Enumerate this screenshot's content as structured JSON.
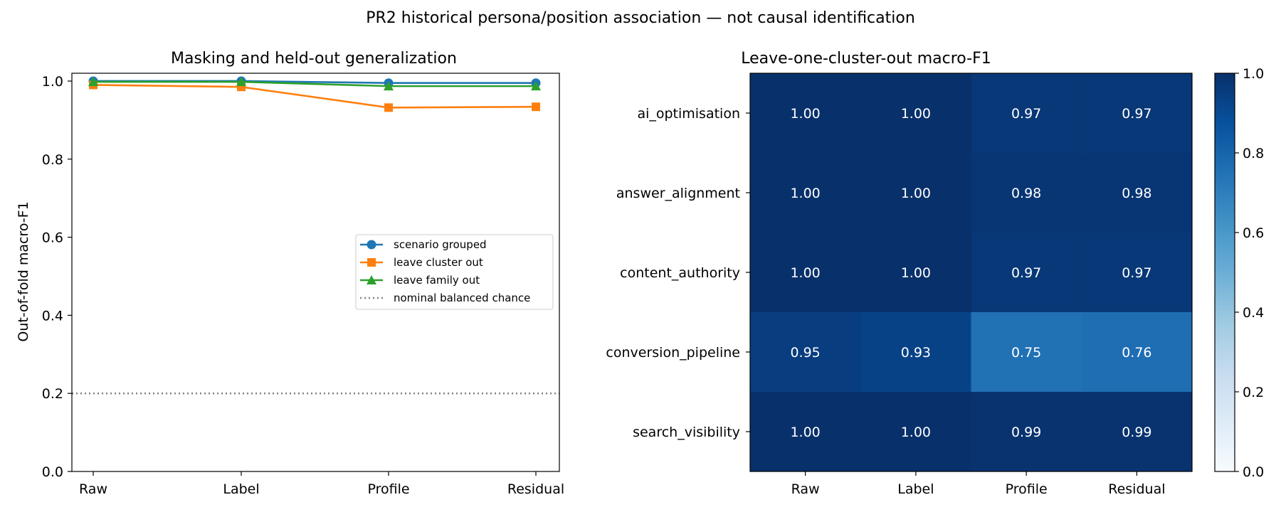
{
  "figure": {
    "suptitle": "PR2 historical persona/position association — not causal identification"
  },
  "chart_data": [
    {
      "type": "line",
      "title": "Masking and held-out generalization",
      "xlabel": "",
      "ylabel": "Out-of-fold macro-F1",
      "categories": [
        "Raw",
        "Label",
        "Profile",
        "Residual"
      ],
      "ylim": [
        0,
        1.02
      ],
      "yticks": [
        0.0,
        0.2,
        0.4,
        0.6,
        0.8,
        1.0
      ],
      "ytick_labels": [
        "0.0",
        "0.2",
        "0.4",
        "0.6",
        "0.8",
        "1.0"
      ],
      "grid": false,
      "legend_position": "center-right",
      "series": [
        {
          "name": "scenario grouped",
          "values": [
            1.0,
            1.0,
            0.995,
            0.995
          ],
          "color": "#1f77b4",
          "marker": "circle"
        },
        {
          "name": "leave cluster out",
          "values": [
            0.99,
            0.985,
            0.932,
            0.934
          ],
          "color": "#ff7f0e",
          "marker": "square"
        },
        {
          "name": "leave family out",
          "values": [
            0.998,
            0.998,
            0.987,
            0.987
          ],
          "color": "#2ca02c",
          "marker": "triangle"
        }
      ],
      "reference_lines": [
        {
          "name": "nominal balanced chance",
          "y": 0.2,
          "color": "#808080",
          "style": "dotted"
        }
      ]
    },
    {
      "type": "heatmap",
      "title": "Leave-one-cluster-out macro-F1",
      "x_categories": [
        "Raw",
        "Label",
        "Profile",
        "Residual"
      ],
      "y_categories": [
        "ai_optimisation",
        "answer_alignment",
        "content_authority",
        "conversion_pipeline",
        "search_visibility"
      ],
      "values": [
        [
          1.0,
          1.0,
          0.97,
          0.97
        ],
        [
          1.0,
          1.0,
          0.98,
          0.98
        ],
        [
          1.0,
          1.0,
          0.97,
          0.97
        ],
        [
          0.95,
          0.93,
          0.75,
          0.76
        ],
        [
          1.0,
          1.0,
          0.99,
          0.99
        ]
      ],
      "value_labels": [
        [
          "1.00",
          "1.00",
          "0.97",
          "0.97"
        ],
        [
          "1.00",
          "1.00",
          "0.98",
          "0.98"
        ],
        [
          "1.00",
          "1.00",
          "0.97",
          "0.97"
        ],
        [
          "0.95",
          "0.93",
          "0.75",
          "0.76"
        ],
        [
          "1.00",
          "1.00",
          "0.99",
          "0.99"
        ]
      ],
      "colormap": "Blues",
      "vmin": 0.0,
      "vmax": 1.0,
      "colorbar_ticks": [
        0.0,
        0.2,
        0.4,
        0.6,
        0.8,
        1.0
      ],
      "colorbar_tick_labels": [
        "0.0",
        "0.2",
        "0.4",
        "0.6",
        "0.8",
        "1.0"
      ]
    }
  ]
}
